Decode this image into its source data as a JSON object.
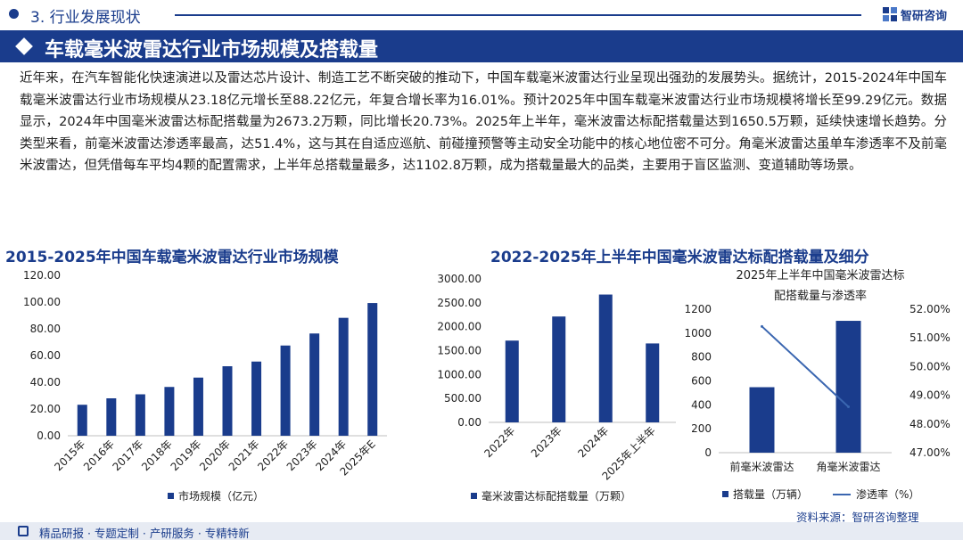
{
  "section": {
    "title": "3. 行业发展现状"
  },
  "logo": {
    "text": "智研咨询"
  },
  "banner": {
    "title": "车载毫米波雷达行业市场规模及搭载量"
  },
  "intro": "近年来，在汽车智能化快速演进以及雷达芯片设计、制造工艺不断突破的推动下，中国车载毫米波雷达行业呈现出强劲的发展势头。据统计，2015-2024年中国车载毫米波雷达行业市场规模从23.18亿元增长至88.22亿元，年复合增长率为16.01%。预计2025年中国车载毫米波雷达行业市场规模将增长至99.29亿元。数据显示，2024年中国毫米波雷达标配搭载量为2673.2万颗，同比增长20.73%。2025年上半年，毫米波雷达标配搭载量达到1650.5万颗，延续快速增长趋势。分类型来看，前毫米波雷达渗透率最高，达51.4%，这与其在自适应巡航、前碰撞预警等主动安全功能中的核心地位密不可分。角毫米波雷达虽单车渗透率不及前毫米波雷达，但凭借每车平均4颗的配置需求，上半年总搭载量最多，达1102.8万颗，成为搭载量最大的品类，主要用于盲区监测、变道辅助等场景。",
  "left_chart_title": "2015-2025年中国车载毫米波雷达行业市场规模",
  "right_chart_title": "2022-2025年上半年中国毫米波雷达标配搭载量及细分",
  "chart_data": [
    {
      "type": "bar",
      "categories": [
        "2015年",
        "2016年",
        "2017年",
        "2018年",
        "2019年",
        "2020年",
        "2021年",
        "2022年",
        "2023年",
        "2024年",
        "2025年E"
      ],
      "series": [
        {
          "name": "市场规模（亿元）",
          "values": [
            23.18,
            28.0,
            31.0,
            36.5,
            43.5,
            52.0,
            55.5,
            67.5,
            76.5,
            88.22,
            99.29
          ],
          "color": "#1a3c8c"
        }
      ],
      "ylim": [
        0,
        120
      ],
      "yticks": [
        "0.00",
        "20.00",
        "40.00",
        "60.00",
        "80.00",
        "100.00",
        "120.00"
      ],
      "grid": false,
      "legend": "bottom"
    },
    {
      "type": "bar",
      "categories": [
        "2022年",
        "2023年",
        "2024年",
        "2025年上半年"
      ],
      "series": [
        {
          "name": "毫米波雷达标配搭载量（万颗）",
          "values": [
            1710,
            2214,
            2673.2,
            1650.5
          ],
          "color": "#1a3c8c"
        }
      ],
      "ylim": [
        0,
        3000
      ],
      "yticks": [
        "0.00",
        "500.00",
        "1000.00",
        "1500.00",
        "2000.00",
        "2500.00",
        "3000.00"
      ],
      "grid": false,
      "legend": "bottom"
    },
    {
      "type": "bar",
      "title": "2025年上半年中国毫米波雷达标配搭载量与渗透率",
      "title_lines": [
        "2025年上半年中国毫米波雷达标",
        "配搭载量与渗透率"
      ],
      "categories": [
        "前毫米波雷达",
        "角毫米波雷达"
      ],
      "series": [
        {
          "name": "搭载量（万辆）",
          "type": "bar",
          "axis": "left",
          "values": [
            547.7,
            1102.8
          ],
          "color": "#1a3c8c"
        },
        {
          "name": "渗透率（%）",
          "type": "line",
          "axis": "right",
          "values": [
            51.4,
            48.6
          ],
          "color": "#3a66b0"
        }
      ],
      "ylim_left": [
        0,
        1200
      ],
      "yticks_left": [
        "0",
        "200",
        "400",
        "600",
        "800",
        "1000",
        "1200"
      ],
      "ylim_right": [
        47,
        52
      ],
      "yticks_right": [
        "47.00%",
        "48.00%",
        "49.00%",
        "50.00%",
        "51.00%",
        "52.00%"
      ],
      "grid": false,
      "legend": "bottom"
    }
  ],
  "source": "资料来源：智研咨询整理",
  "footer": "精品研报 · 专题定制 · 产研服务 · 专精特新"
}
